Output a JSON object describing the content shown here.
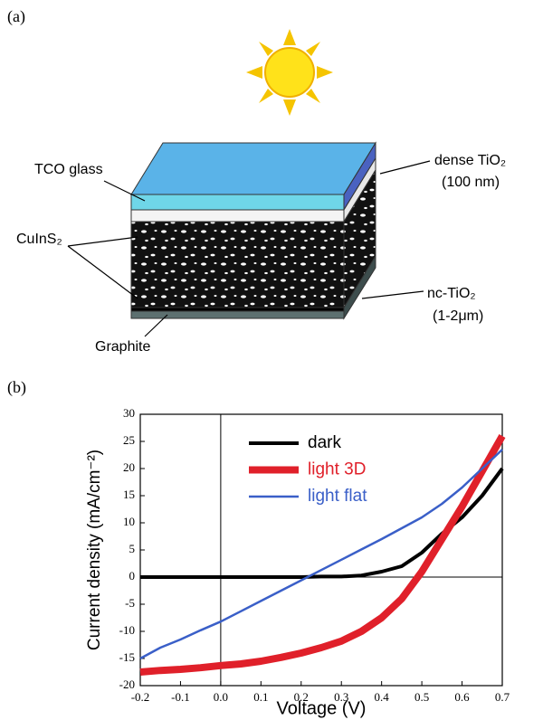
{
  "figure": {
    "label_a": "(a)",
    "label_b": "(b)"
  },
  "diagram": {
    "labels": {
      "tco": "TCO glass",
      "dense": "dense TiO₂",
      "dense_thickness": "(100 nm)",
      "cuins": "CuInS₂",
      "nc": "nc-TiO₂",
      "nc_thickness": "(1-2μm)",
      "graphite": "Graphite"
    }
  },
  "chart_data": {
    "type": "line",
    "x_label": "Voltage (V)",
    "y_label": "Current density (mA/cm⁻²)",
    "x": [
      -0.2,
      -0.15,
      -0.1,
      -0.05,
      0,
      0.05,
      0.1,
      0.15,
      0.2,
      0.25,
      0.3,
      0.35,
      0.4,
      0.45,
      0.5,
      0.55,
      0.6,
      0.65,
      0.7
    ],
    "series": [
      {
        "name": "dark",
        "color": "#000000",
        "width": 4,
        "values": [
          0,
          0,
          0,
          0,
          0,
          0,
          0,
          0,
          0,
          0.1,
          0.1,
          0.3,
          1,
          2,
          4.5,
          8,
          11,
          15,
          20
        ]
      },
      {
        "name": "light 3D",
        "color": "#e0202a",
        "width": 8,
        "values": [
          -17.5,
          -17.2,
          -17,
          -16.7,
          -16.3,
          -16,
          -15.5,
          -14.8,
          -14,
          -13,
          -11.8,
          -10,
          -7.5,
          -4,
          1,
          7,
          13,
          19.5,
          26
        ]
      },
      {
        "name": "light flat",
        "color": "#3a5fc8",
        "width": 2.5,
        "values": [
          -15,
          -13,
          -11.5,
          -9.8,
          -8.2,
          -6.3,
          -4.4,
          -2.5,
          -0.6,
          1.3,
          3.2,
          5.1,
          7,
          9,
          11,
          13.5,
          16.5,
          20,
          23.5
        ]
      }
    ],
    "xlim": [
      -0.2,
      0.7
    ],
    "ylim": [
      -20,
      30
    ],
    "xticks": [
      -0.2,
      -0.1,
      {
        "value": 0,
        "label": "0.0"
      },
      0.1,
      0.2,
      0.3,
      0.4,
      0.5,
      0.6,
      0.7
    ],
    "yticks": [
      -20,
      -15,
      -10,
      -5,
      0,
      5,
      10,
      15,
      20,
      25,
      30
    ],
    "legend": "upper center"
  }
}
